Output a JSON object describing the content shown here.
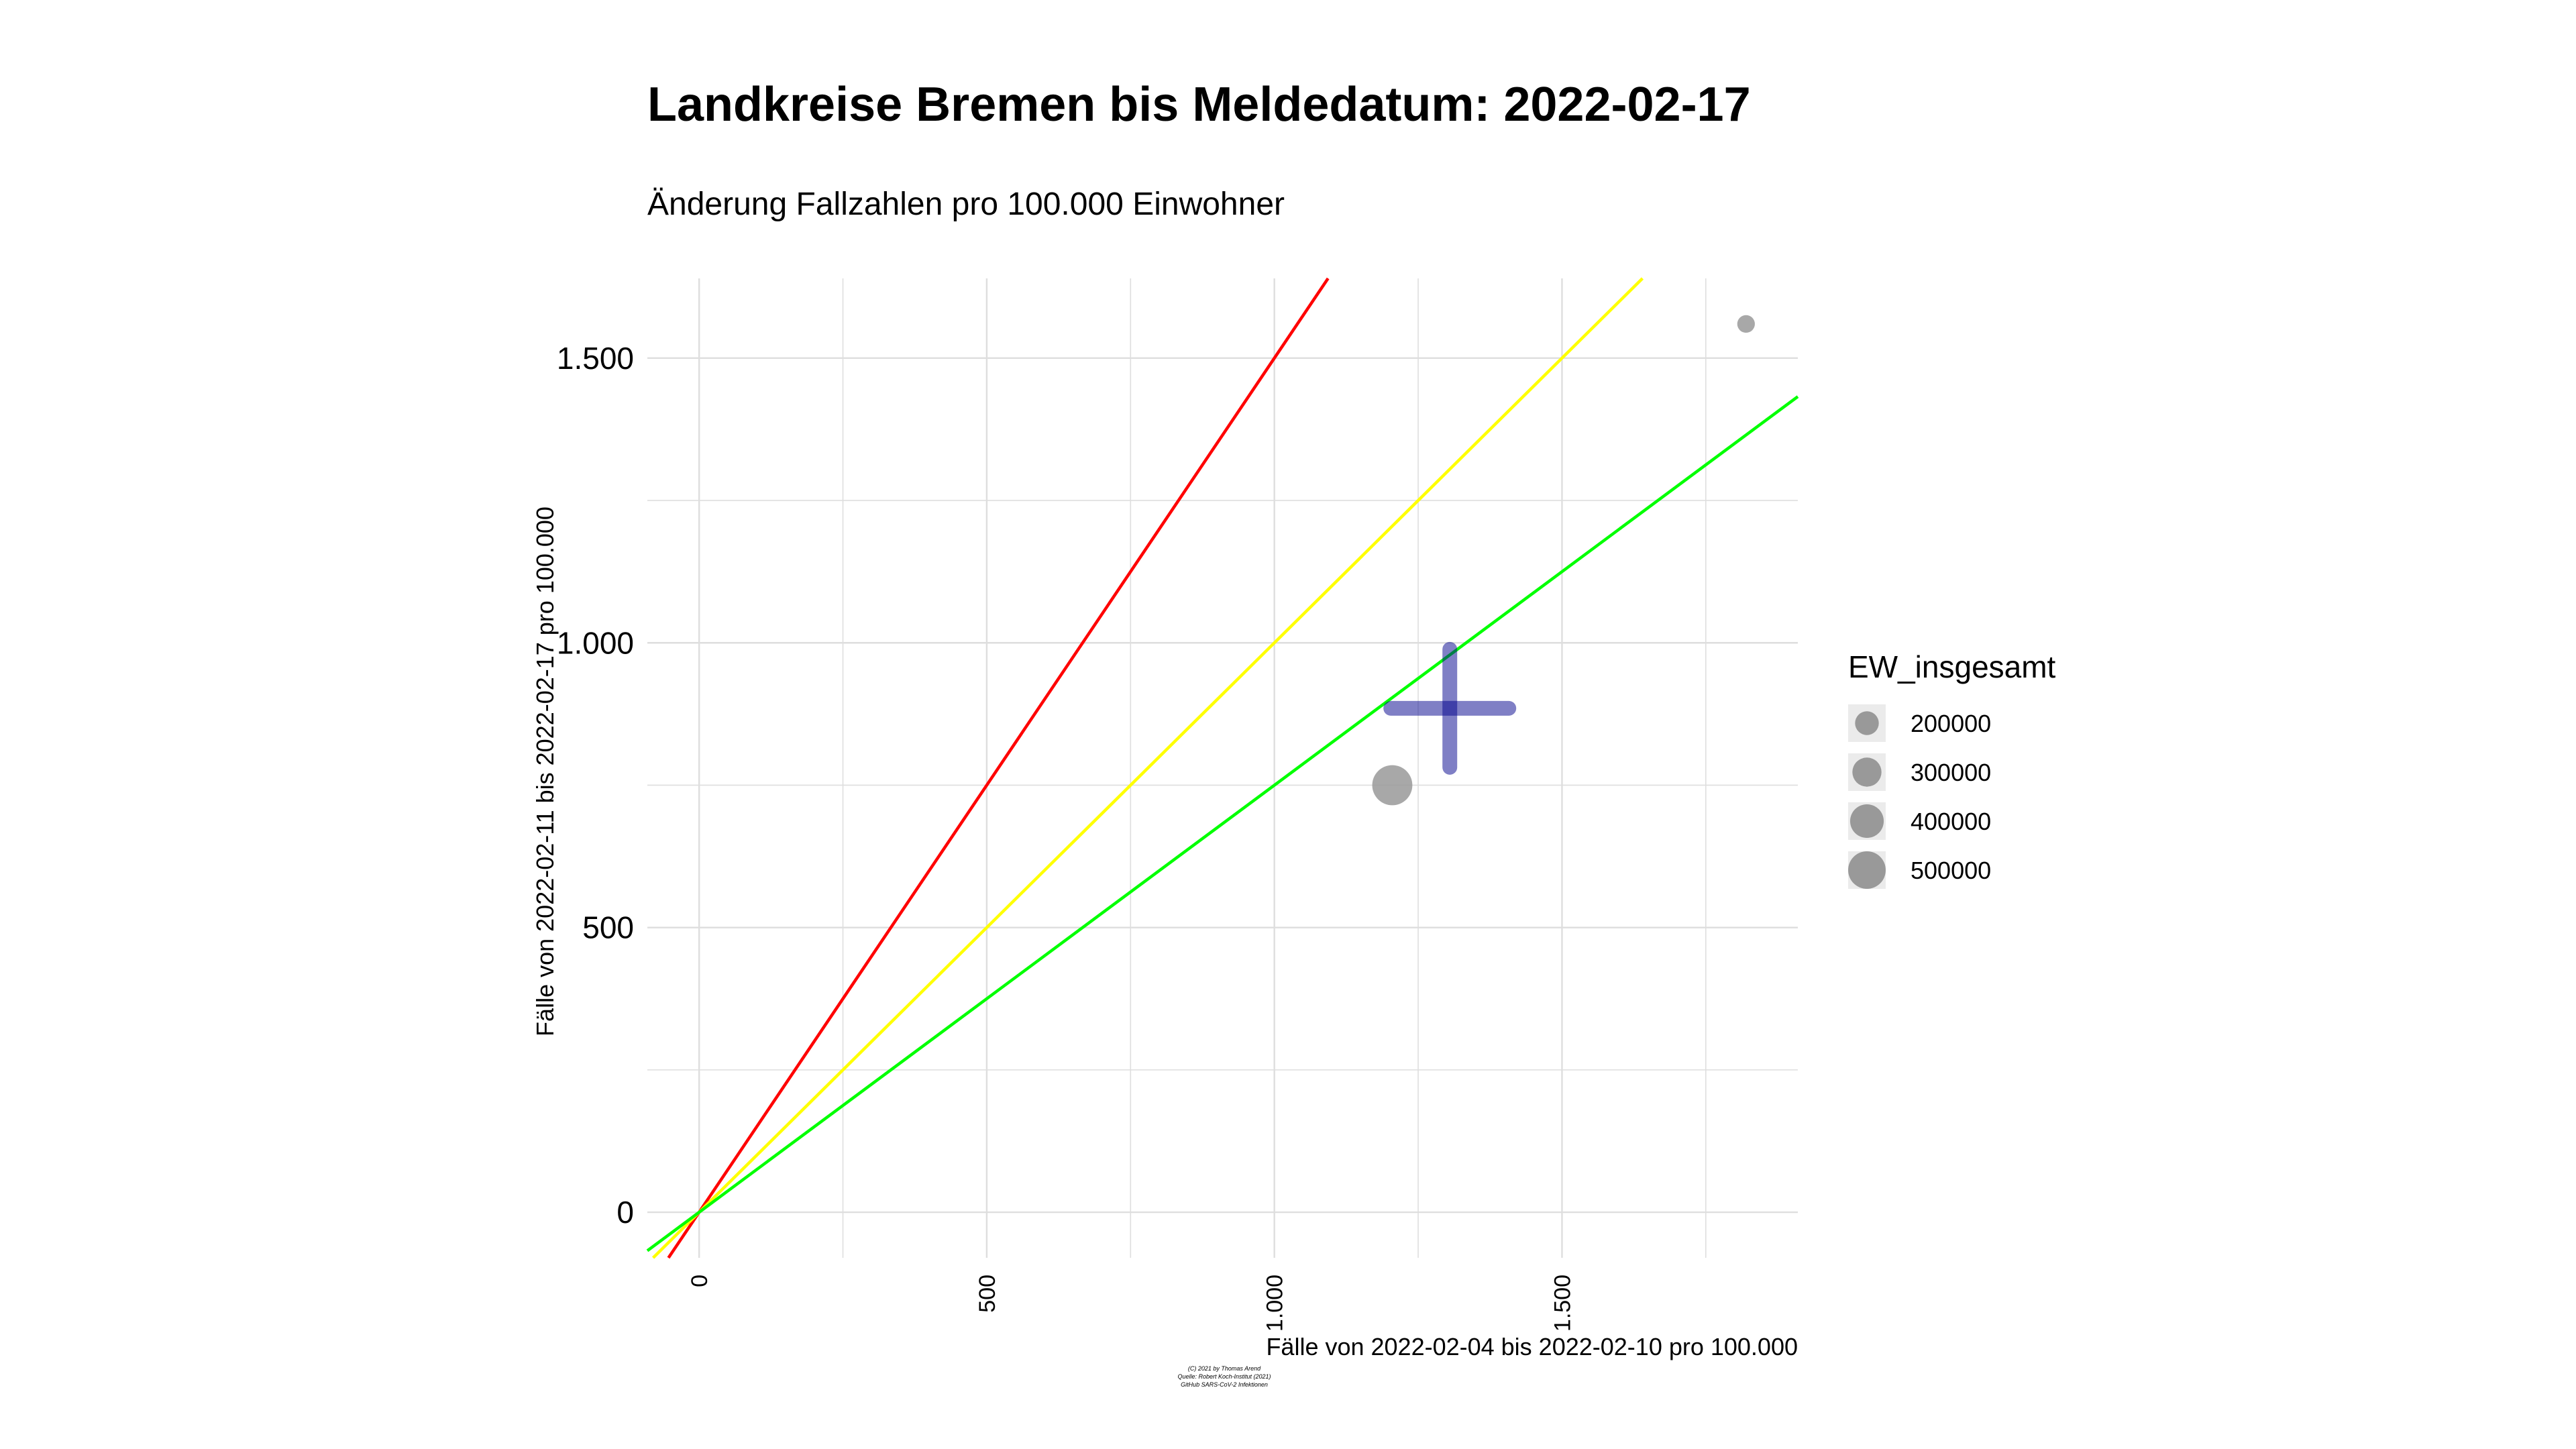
{
  "chart_data": {
    "type": "scatter",
    "title": "Landkreise Bremen bis Meldedatum: 2022-02-17",
    "subtitle": "Änderung Fallzahlen pro 100.000 Einwohner",
    "xlabel": "Fälle von 2022-02-04 bis 2022-02-10 pro 100.000",
    "ylabel": "Fälle von 2022-02-11 bis 2022-02-17 pro 100.000",
    "xlim": [
      -90,
      1910
    ],
    "ylim": [
      -80,
      1640
    ],
    "grid": true,
    "x_ticks": [
      {
        "value": 0,
        "label": "0"
      },
      {
        "value": 500,
        "label": "500"
      },
      {
        "value": 1000,
        "label": "1.000"
      },
      {
        "value": 1500,
        "label": "1.500"
      }
    ],
    "y_ticks": [
      {
        "value": 0,
        "label": "0"
      },
      {
        "value": 500,
        "label": "500"
      },
      {
        "value": 1000,
        "label": "1.000"
      },
      {
        "value": 1500,
        "label": "1.500"
      }
    ],
    "reference_lines": [
      {
        "slope": 1.5,
        "color": "#ff0000"
      },
      {
        "slope": 1.0,
        "color": "#ffff00"
      },
      {
        "slope": 0.75,
        "color": "#00ff00"
      }
    ],
    "points": [
      {
        "x": 1820,
        "y": 1560,
        "ew": 110000,
        "color": "#999999"
      },
      {
        "x": 1205,
        "y": 750,
        "ew": 570000,
        "color": "#999999"
      }
    ],
    "reference_marker": {
      "x": 1305,
      "y": 885,
      "color": "#00008b"
    },
    "legend": {
      "title": "EW_insgesamt",
      "placement": "right",
      "entries": [
        {
          "label": "200000",
          "value": 200000
        },
        {
          "label": "300000",
          "value": 300000
        },
        {
          "label": "400000",
          "value": 400000
        },
        {
          "label": "500000",
          "value": 500000
        }
      ]
    },
    "caption": [
      "(C) 2021 by Thomas Arend",
      "Quelle: Robert Koch-Institut (2021)",
      "GitHub SARS-CoV-2 Infektionen"
    ]
  },
  "colors": {
    "point": "#999999",
    "marker": "#00008b",
    "grid": "#dedede"
  }
}
